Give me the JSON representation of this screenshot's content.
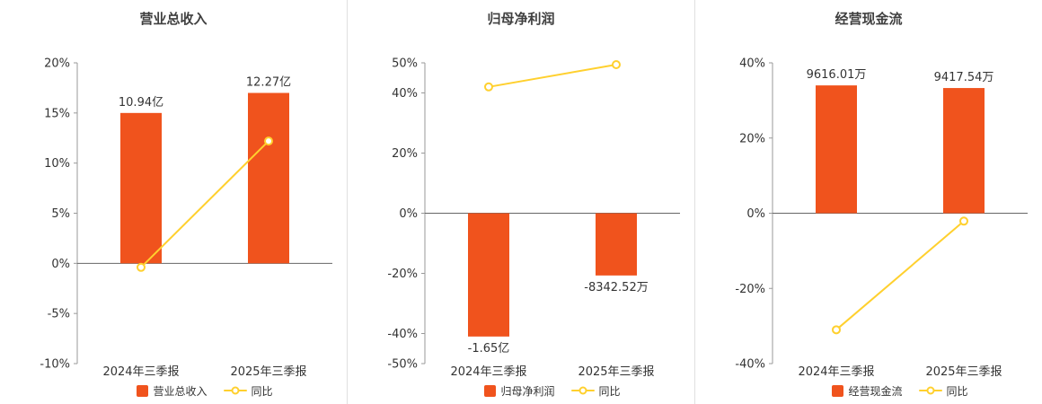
{
  "colors": {
    "bar": "#f0531d",
    "line": "#ffd02e",
    "axis": "#999999",
    "zero_line": "#666666",
    "text": "#333333",
    "title": "#404040",
    "divider": "#e0e0e0",
    "background": "#ffffff"
  },
  "chart_data": [
    {
      "type": "bar",
      "title": "营业总收入",
      "categories": [
        "2024年三季报",
        "2025年三季报"
      ],
      "bar_series": {
        "name": "营业总收入",
        "value_labels": [
          "10.94亿",
          "12.27亿"
        ],
        "plotted_heights_pct": [
          15,
          17
        ]
      },
      "line_series": {
        "name": "同比",
        "values_pct": [
          -0.4,
          12.2
        ]
      },
      "ylim": [
        -10,
        20
      ],
      "yticks": [
        20,
        15,
        10,
        5,
        0,
        -5,
        -10
      ],
      "ytick_suffix": "%",
      "grid": false,
      "legend_position": "bottom"
    },
    {
      "type": "bar",
      "title": "归母净利润",
      "categories": [
        "2024年三季报",
        "2025年三季报"
      ],
      "bar_series": {
        "name": "归母净利润",
        "value_labels": [
          "-1.65亿",
          "-8342.52万"
        ],
        "plotted_heights_pct": [
          -41,
          -20.7
        ]
      },
      "line_series": {
        "name": "同比",
        "values_pct": [
          42,
          49.4
        ]
      },
      "ylim": [
        -50,
        50
      ],
      "yticks": [
        50,
        40,
        20,
        0,
        -20,
        -40,
        -50
      ],
      "ytick_suffix": "%",
      "grid": false,
      "legend_position": "bottom"
    },
    {
      "type": "bar",
      "title": "经营现金流",
      "categories": [
        "2024年三季报",
        "2025年三季报"
      ],
      "bar_series": {
        "name": "经营现金流",
        "value_labels": [
          "9616.01万",
          "9417.54万"
        ],
        "plotted_heights_pct": [
          34,
          33.3
        ]
      },
      "line_series": {
        "name": "同比",
        "values_pct": [
          -31,
          -2.1
        ]
      },
      "ylim": [
        -40,
        40
      ],
      "yticks": [
        40,
        20,
        0,
        -20,
        -40
      ],
      "ytick_suffix": "%",
      "grid": false,
      "legend_position": "bottom"
    }
  ]
}
